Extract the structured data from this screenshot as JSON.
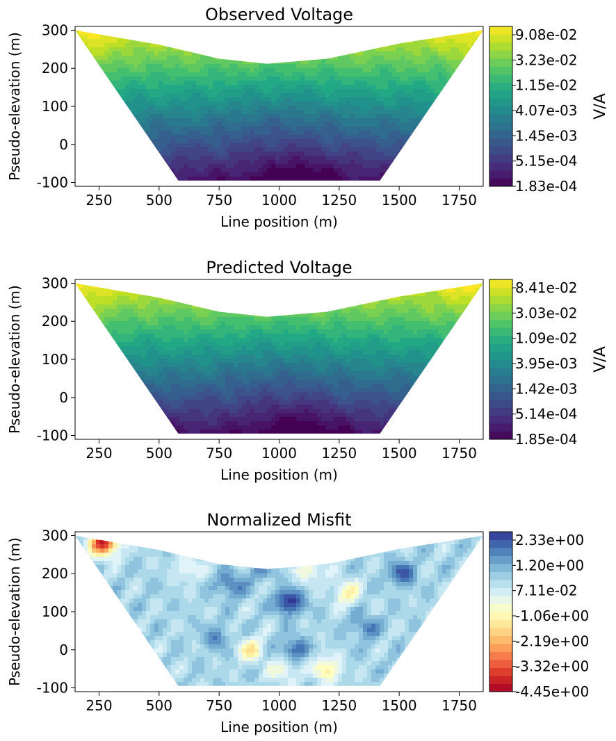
{
  "chart_data": [
    {
      "type": "contour",
      "title": "Observed Voltage",
      "xlabel": "Line position (m)",
      "ylabel": "Pseudo-elevation (m)",
      "xlim": [
        150,
        1850
      ],
      "ylim": [
        -110,
        310
      ],
      "xticks": [
        "250",
        "500",
        "750",
        "1000",
        "1250",
        "1500",
        "1750"
      ],
      "yticks": [
        "-100",
        "0",
        "100",
        "200",
        "300"
      ],
      "colorbar": {
        "label": "V/A",
        "colormap": "viridis",
        "scale": "log",
        "ticks": [
          "9.08e-02",
          "3.23e-02",
          "1.15e-02",
          "4.07e-03",
          "1.45e-03",
          "5.15e-04",
          "1.83e-04"
        ]
      },
      "region_outline": [
        [
          150,
          300
        ],
        [
          580,
          -95
        ],
        [
          1420,
          -95
        ],
        [
          1850,
          300
        ],
        [
          1500,
          265
        ],
        [
          1200,
          225
        ],
        [
          950,
          212
        ],
        [
          750,
          225
        ],
        [
          500,
          262
        ],
        [
          150,
          300
        ]
      ]
    },
    {
      "type": "contour",
      "title": "Predicted Voltage",
      "xlabel": "Line position (m)",
      "ylabel": "Pseudo-elevation (m)",
      "xlim": [
        150,
        1850
      ],
      "ylim": [
        -110,
        310
      ],
      "xticks": [
        "250",
        "500",
        "750",
        "1000",
        "1250",
        "1500",
        "1750"
      ],
      "yticks": [
        "-100",
        "0",
        "100",
        "200",
        "300"
      ],
      "colorbar": {
        "label": "V/A",
        "colormap": "viridis",
        "scale": "log",
        "ticks": [
          "8.41e-02",
          "3.03e-02",
          "1.09e-02",
          "3.95e-03",
          "1.42e-03",
          "5.14e-04",
          "1.85e-04"
        ]
      },
      "region_outline": [
        [
          150,
          300
        ],
        [
          580,
          -95
        ],
        [
          1420,
          -95
        ],
        [
          1850,
          300
        ],
        [
          1500,
          265
        ],
        [
          1200,
          225
        ],
        [
          950,
          212
        ],
        [
          750,
          225
        ],
        [
          500,
          262
        ],
        [
          150,
          300
        ]
      ]
    },
    {
      "type": "contour",
      "title": "Normalized Misfit",
      "xlabel": "Line position (m)",
      "ylabel": "Pseudo-elevation (m)",
      "xlim": [
        150,
        1850
      ],
      "ylim": [
        -110,
        310
      ],
      "xticks": [
        "250",
        "500",
        "750",
        "1000",
        "1250",
        "1500",
        "1750"
      ],
      "yticks": [
        "-100",
        "0",
        "100",
        "200",
        "300"
      ],
      "colorbar": {
        "label": "",
        "colormap": "RdYlBu",
        "scale": "linear",
        "ticks": [
          "2.33e+00",
          "1.20e+00",
          "7.11e-02",
          "-1.06e+00",
          "-2.19e+00",
          "-3.32e+00",
          "-4.45e+00"
        ]
      },
      "region_outline": [
        [
          150,
          300
        ],
        [
          580,
          -95
        ],
        [
          1420,
          -95
        ],
        [
          1850,
          300
        ],
        [
          1500,
          265
        ],
        [
          1200,
          225
        ],
        [
          950,
          212
        ],
        [
          750,
          225
        ],
        [
          500,
          262
        ],
        [
          150,
          300
        ]
      ],
      "features": [
        {
          "x": 270,
          "y": 280,
          "value": -4.2
        },
        {
          "x": 1040,
          "y": 125,
          "value": 2.2
        },
        {
          "x": 1200,
          "y": -50,
          "value": -1.8
        },
        {
          "x": 880,
          "y": 0,
          "value": -1.6
        },
        {
          "x": 1280,
          "y": 150,
          "value": -1.5
        },
        {
          "x": 1130,
          "y": 210,
          "value": -1.3
        },
        {
          "x": 1510,
          "y": 200,
          "value": 1.6
        },
        {
          "x": 800,
          "y": 170,
          "value": 1.4
        },
        {
          "x": 1060,
          "y": 0,
          "value": 1.5
        },
        {
          "x": 1020,
          "y": -55,
          "value": -1.2
        },
        {
          "x": 620,
          "y": 215,
          "value": -1.0
        },
        {
          "x": 740,
          "y": 30,
          "value": 1.0
        },
        {
          "x": 1360,
          "y": 60,
          "value": 1.2
        },
        {
          "x": 930,
          "y": 215,
          "value": 0.9
        }
      ]
    }
  ]
}
